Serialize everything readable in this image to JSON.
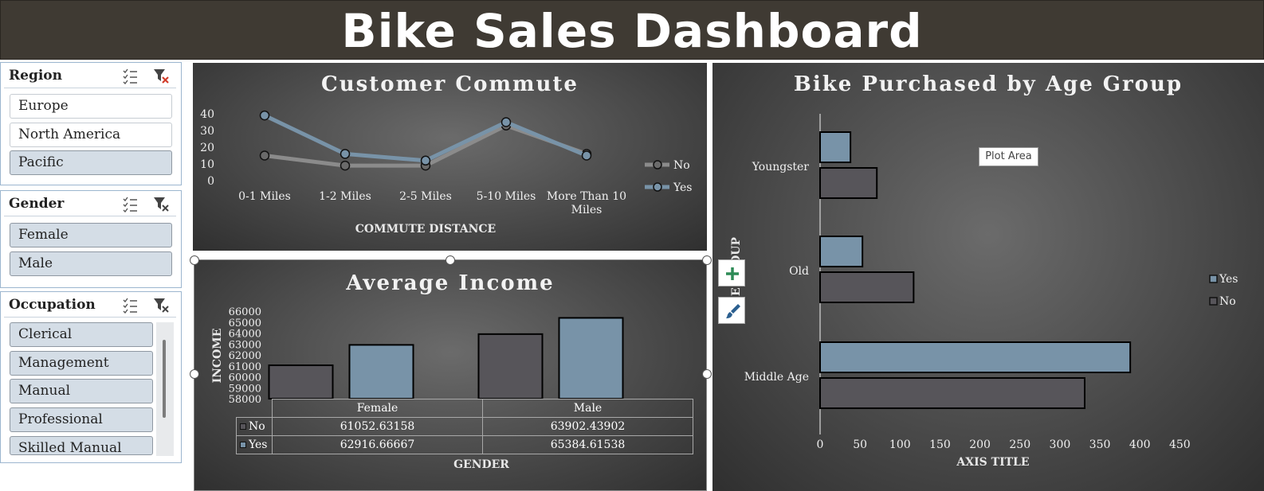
{
  "dashboard_title": "Bike Sales Dashboard",
  "colors": {
    "banner": "#3f3a33",
    "yes": "#7893a8",
    "no": "#57555a",
    "slicer_selected": "#d4dde6"
  },
  "slicers": {
    "region": {
      "title": "Region",
      "multiselect_icon": "multi-select-icon",
      "clear_icon": "clear-filter-icon",
      "items": [
        {
          "label": "Europe",
          "selected": false
        },
        {
          "label": "North America",
          "selected": false
        },
        {
          "label": "Pacific",
          "selected": true
        }
      ]
    },
    "gender": {
      "title": "Gender",
      "multiselect_icon": "multi-select-icon",
      "clear_icon": "clear-filter-icon",
      "items": [
        {
          "label": "Female",
          "selected": true
        },
        {
          "label": "Male",
          "selected": true
        }
      ]
    },
    "occupation": {
      "title": "Occupation",
      "multiselect_icon": "multi-select-icon",
      "clear_icon": "clear-filter-icon",
      "items": [
        {
          "label": "Clerical",
          "selected": true
        },
        {
          "label": "Management",
          "selected": true
        },
        {
          "label": "Manual",
          "selected": true
        },
        {
          "label": "Professional",
          "selected": true
        },
        {
          "label": "Skilled Manual",
          "selected": true
        }
      ]
    }
  },
  "chart_buttons": {
    "add_icon": "plus-icon",
    "style_icon": "paintbrush-icon"
  },
  "tooltip": "Plot Area",
  "chart_data": [
    {
      "type": "line",
      "title": "Customer Commute",
      "xlabel": "COMMUTE DISTANCE",
      "ylabel": "",
      "categories": [
        "0-1 Miles",
        "1-2 Miles",
        "2-5 Miles",
        "5-10 Miles",
        "More Than 10 Miles"
      ],
      "series": [
        {
          "name": "No",
          "values": [
            15,
            9,
            9,
            33,
            16
          ]
        },
        {
          "name": "Yes",
          "values": [
            39,
            16,
            12,
            35,
            15
          ]
        }
      ],
      "yticks": [
        "0",
        "10",
        "20",
        "30",
        "40"
      ],
      "ylim": [
        0,
        40
      ],
      "legend": "right"
    },
    {
      "type": "bar",
      "title": "Average Income",
      "xlabel": "GENDER",
      "ylabel": "INCOME",
      "categories": [
        "Female",
        "Male"
      ],
      "series": [
        {
          "name": "No",
          "values": [
            61052.63158,
            63902.43902
          ],
          "labels": [
            "61052.63158",
            "63902.43902"
          ]
        },
        {
          "name": "Yes",
          "values": [
            62916.66667,
            65384.61538
          ],
          "labels": [
            "62916.66667",
            "65384.61538"
          ]
        }
      ],
      "yticks": [
        "58000",
        "59000",
        "60000",
        "61000",
        "62000",
        "63000",
        "64000",
        "65000",
        "66000"
      ],
      "ylim": [
        58000,
        66000
      ],
      "data_table": true
    },
    {
      "type": "bar",
      "orientation": "horizontal",
      "title": "Bike Purchased by Age Group",
      "xlabel": "AXIS TITLE",
      "ylabel": "AGE GROUP",
      "ylabel_visible": "GE GROUP",
      "categories": [
        "Youngster",
        "Old",
        "Middle Age"
      ],
      "series": [
        {
          "name": "Yes",
          "values": [
            38,
            53,
            388
          ]
        },
        {
          "name": "No",
          "values": [
            71,
            117,
            331
          ]
        }
      ],
      "xticks": [
        "0",
        "50",
        "100",
        "150",
        "200",
        "250",
        "300",
        "350",
        "400",
        "450"
      ],
      "xlim": [
        0,
        450
      ],
      "legend": "right"
    }
  ]
}
